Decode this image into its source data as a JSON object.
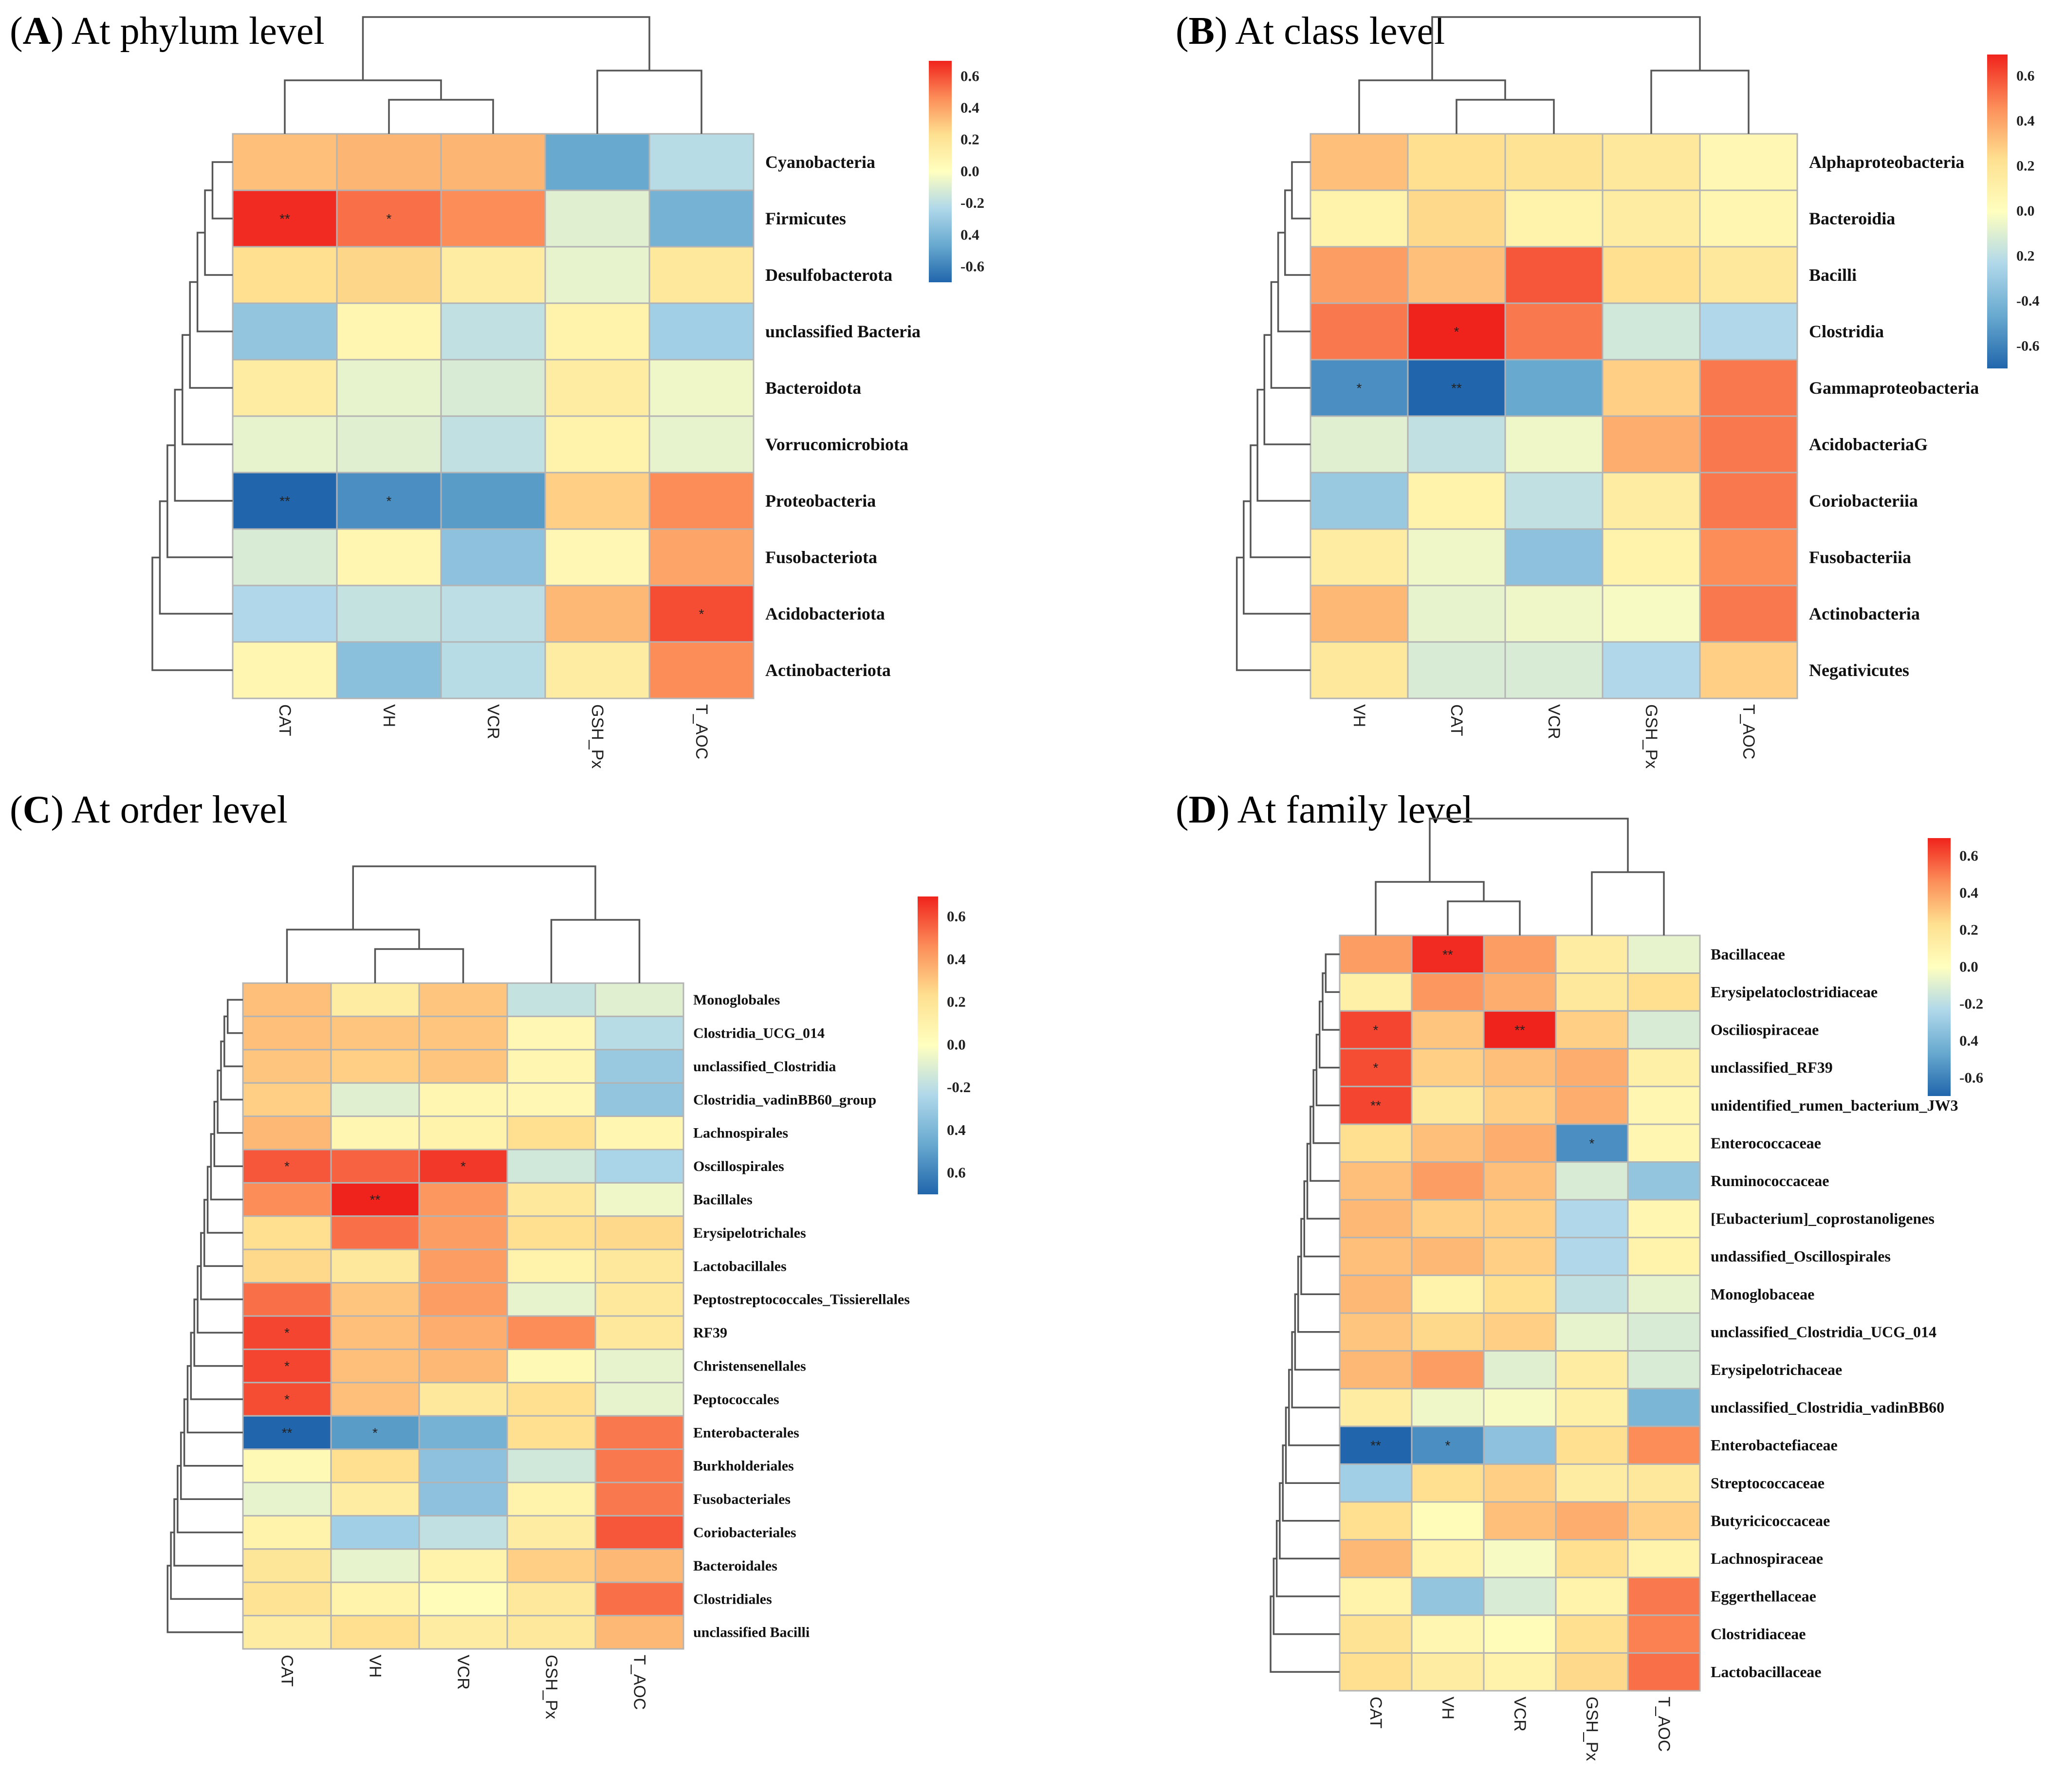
{
  "chart_data": [
    {
      "panel": "A",
      "title_rest": ") At phylum level",
      "type": "heatmap",
      "columns": [
        "CAT",
        "VH",
        "VCR",
        "GSH_Px",
        "T_AOC"
      ],
      "rows": [
        "Cyanobacteria",
        "Firmicutes",
        "Desulfobacterota",
        "unclassified Bacteria",
        "Bacteroidota",
        "Vorrucomicrobiota",
        "Proteobacteria",
        "Fusobacteriota",
        "Acidobacteriota",
        "Actinobacteriota"
      ],
      "values": [
        [
          0.3,
          0.33,
          0.33,
          -0.45,
          -0.18
        ],
        [
          0.68,
          0.52,
          0.45,
          -0.08,
          -0.4
        ],
        [
          0.2,
          0.23,
          0.12,
          -0.06,
          0.15
        ],
        [
          -0.3,
          0.06,
          -0.16,
          0.08,
          -0.25
        ],
        [
          0.12,
          -0.06,
          -0.1,
          0.12,
          -0.04
        ],
        [
          -0.06,
          -0.08,
          -0.16,
          0.08,
          -0.06
        ],
        [
          -0.7,
          -0.55,
          -0.5,
          0.25,
          0.45
        ],
        [
          -0.1,
          0.06,
          -0.32,
          0.05,
          0.38
        ],
        [
          -0.2,
          -0.15,
          -0.17,
          0.32,
          0.6
        ],
        [
          0.06,
          -0.33,
          -0.18,
          0.12,
          0.45
        ]
      ],
      "stars": [
        [
          "",
          "",
          "",
          "",
          ""
        ],
        [
          "**",
          "*",
          "",
          "",
          ""
        ],
        [
          "",
          "",
          "",
          "",
          ""
        ],
        [
          "",
          "",
          "",
          "",
          ""
        ],
        [
          "",
          "",
          "",
          "",
          ""
        ],
        [
          "",
          "",
          "",
          "",
          ""
        ],
        [
          "**",
          "*",
          "",
          "",
          ""
        ],
        [
          "",
          "",
          "",
          "",
          ""
        ],
        [
          "",
          "",
          "",
          "",
          "*"
        ],
        [
          "",
          "",
          "",
          "",
          ""
        ]
      ],
      "legend_ticks": [
        "0.6",
        "0.4",
        "0.2",
        "0.0",
        "-0.2",
        "0.4",
        "-0.6"
      ],
      "vmin": -0.7,
      "vmax": 0.7
    },
    {
      "panel": "B",
      "title_rest": ") At class level",
      "type": "heatmap",
      "columns": [
        "VH",
        "CAT",
        "VCR",
        "GSH_Px",
        "T_AOC"
      ],
      "rows": [
        "Alphaproteobacteria",
        "Bacteroidia",
        "Bacilli",
        "Clostridia",
        "Gammaproteobacteria",
        "AcidobacteriaG",
        "Coriobacteriia",
        "Fusobacteriia",
        "Actinobacteria",
        "Negativicutes"
      ],
      "values": [
        [
          0.3,
          0.2,
          0.18,
          0.15,
          0.05
        ],
        [
          0.08,
          0.22,
          0.08,
          0.12,
          0.06
        ],
        [
          0.4,
          0.3,
          0.58,
          0.2,
          0.15
        ],
        [
          0.5,
          0.7,
          0.5,
          -0.12,
          -0.2
        ],
        [
          -0.55,
          -0.7,
          -0.45,
          0.25,
          0.5
        ],
        [
          -0.08,
          -0.16,
          -0.04,
          0.35,
          0.5
        ],
        [
          -0.28,
          0.08,
          -0.16,
          0.12,
          0.5
        ],
        [
          0.12,
          -0.04,
          -0.32,
          0.08,
          0.45
        ],
        [
          0.32,
          -0.06,
          -0.04,
          -0.02,
          0.5
        ],
        [
          0.15,
          -0.1,
          -0.1,
          -0.2,
          0.25
        ]
      ],
      "stars": [
        [
          "",
          "",
          "",
          "",
          ""
        ],
        [
          "",
          "",
          "",
          "",
          ""
        ],
        [
          "",
          "",
          "",
          "",
          ""
        ],
        [
          "",
          "*",
          "",
          "",
          ""
        ],
        [
          "*",
          "**",
          "",
          "",
          ""
        ],
        [
          "",
          "",
          "",
          "",
          ""
        ],
        [
          "",
          "",
          "",
          "",
          ""
        ],
        [
          "",
          "",
          "",
          "",
          ""
        ],
        [
          "",
          "",
          "",
          "",
          ""
        ],
        [
          "",
          "",
          "",
          "",
          ""
        ]
      ],
      "legend_ticks": [
        "0.6",
        "0.4",
        "0.2",
        "0.0",
        "0.2",
        "-0.4",
        "-0.6"
      ],
      "vmin": -0.7,
      "vmax": 0.7
    },
    {
      "panel": "C",
      "title_rest": ") At order level",
      "type": "heatmap",
      "columns": [
        "CAT",
        "VH",
        "VCR",
        "GSH_Px",
        "T_AOC"
      ],
      "rows": [
        "Monoglobales",
        "Clostridia_UCG_014",
        "unclassified_Clostridia",
        "Clostridia_vadinBB60_group",
        "Lachnospirales",
        "Oscillospirales",
        "Bacillales",
        "Erysipelotrichales",
        "Lactobacillales",
        "Peptostreptococcales_Tissierellales",
        "RF39",
        "Christensenellales",
        "Peptococcales",
        "Enterobacterales",
        "Burkholderiales",
        "Fusobacteriales",
        "Coriobacteriales",
        "Bacteroidales",
        "Clostridiales",
        "unclassified Bacilli"
      ],
      "values": [
        [
          0.3,
          0.12,
          0.28,
          -0.15,
          -0.08
        ],
        [
          0.3,
          0.28,
          0.28,
          0.05,
          -0.18
        ],
        [
          0.28,
          0.25,
          0.28,
          0.06,
          -0.28
        ],
        [
          0.25,
          -0.08,
          0.06,
          0.05,
          -0.3
        ],
        [
          0.32,
          0.06,
          0.08,
          0.2,
          0.06
        ],
        [
          0.58,
          0.55,
          0.65,
          -0.12,
          -0.22
        ],
        [
          0.45,
          0.7,
          0.42,
          0.15,
          -0.04
        ],
        [
          0.2,
          0.52,
          0.4,
          0.2,
          0.22
        ],
        [
          0.22,
          0.15,
          0.4,
          0.08,
          0.15
        ],
        [
          0.52,
          0.28,
          0.4,
          -0.06,
          0.15
        ],
        [
          0.62,
          0.3,
          0.35,
          0.45,
          0.15
        ],
        [
          0.62,
          0.3,
          0.32,
          0.04,
          -0.06
        ],
        [
          0.6,
          0.3,
          0.15,
          0.2,
          -0.06
        ],
        [
          -0.7,
          -0.5,
          -0.4,
          0.2,
          0.5
        ],
        [
          0.04,
          0.2,
          -0.32,
          -0.12,
          0.5
        ],
        [
          -0.06,
          0.12,
          -0.32,
          0.08,
          0.5
        ],
        [
          0.08,
          -0.25,
          -0.16,
          0.12,
          0.58
        ],
        [
          0.16,
          -0.06,
          0.08,
          0.25,
          0.32
        ],
        [
          0.18,
          0.08,
          0.02,
          0.15,
          0.52
        ],
        [
          0.12,
          0.2,
          0.12,
          0.15,
          0.32
        ]
      ],
      "stars": [
        [
          "",
          "",
          "",
          "",
          ""
        ],
        [
          "",
          "",
          "",
          "",
          ""
        ],
        [
          "",
          "",
          "",
          "",
          ""
        ],
        [
          "",
          "",
          "",
          "",
          ""
        ],
        [
          "",
          "",
          "",
          "",
          ""
        ],
        [
          "*",
          "",
          "*",
          "",
          ""
        ],
        [
          "",
          "**",
          "",
          "",
          ""
        ],
        [
          "",
          "",
          "",
          "",
          ""
        ],
        [
          "",
          "",
          "",
          "",
          ""
        ],
        [
          "",
          "",
          "",
          "",
          ""
        ],
        [
          "*",
          "",
          "",
          "",
          ""
        ],
        [
          "*",
          "",
          "",
          "",
          ""
        ],
        [
          "*",
          "",
          "",
          "",
          ""
        ],
        [
          "**",
          "*",
          "",
          "",
          ""
        ],
        [
          "",
          "",
          "",
          "",
          ""
        ],
        [
          "",
          "",
          "",
          "",
          ""
        ],
        [
          "",
          "",
          "",
          "",
          ""
        ],
        [
          "",
          "",
          "",
          "",
          ""
        ],
        [
          "",
          "",
          "",
          "",
          ""
        ],
        [
          "",
          "",
          "",
          "",
          ""
        ]
      ],
      "legend_ticks": [
        "0.6",
        "0.4",
        "0.2",
        "0.0",
        "-0.2",
        "0.4",
        "0.6"
      ],
      "vmin": -0.7,
      "vmax": 0.7
    },
    {
      "panel": "D",
      "title_rest": ") At family level",
      "type": "heatmap",
      "columns": [
        "CAT",
        "VH",
        "VCR",
        "GSH_Px",
        "T_AOC"
      ],
      "rows": [
        "Bacillaceae",
        "Erysipelatoclostridiaceae",
        "Osciliospiraceae",
        "unclassified_RF39",
        "unidentified_rumen_bacterium_JW3",
        "Enterococcaceae",
        "Ruminococcaceae",
        "[Eubacterium]_coprostanoligenes",
        "undassified_Oscillospirales",
        "Monoglobaceae",
        "unclassified_Clostridia_UCG_014",
        "Erysipelotrichaceae",
        "unclassified_Clostridia_vadinBB60",
        "Enterobactefiaceae",
        "Streptococcaceae",
        "Butyricicoccaceae",
        "Lachnospiraceae",
        "Eggerthellaceae",
        "Clostridiaceae",
        "Lactobacillaceae"
      ],
      "values": [
        [
          0.4,
          0.68,
          0.4,
          0.12,
          -0.06
        ],
        [
          0.1,
          0.42,
          0.35,
          0.15,
          0.2
        ],
        [
          0.62,
          0.28,
          0.7,
          0.25,
          -0.1
        ],
        [
          0.6,
          0.25,
          0.3,
          0.35,
          0.1
        ],
        [
          0.62,
          0.15,
          0.25,
          0.35,
          0.06
        ],
        [
          0.2,
          0.3,
          0.35,
          -0.55,
          0.06
        ],
        [
          0.3,
          0.4,
          0.3,
          -0.1,
          -0.3
        ],
        [
          0.32,
          0.25,
          0.25,
          -0.2,
          0.06
        ],
        [
          0.3,
          0.32,
          0.25,
          -0.2,
          0.08
        ],
        [
          0.32,
          0.08,
          0.2,
          -0.16,
          -0.06
        ],
        [
          0.28,
          0.22,
          0.25,
          -0.06,
          -0.1
        ],
        [
          0.32,
          0.4,
          -0.08,
          0.12,
          -0.1
        ],
        [
          0.12,
          -0.04,
          -0.02,
          0.1,
          -0.38
        ],
        [
          -0.7,
          -0.55,
          -0.32,
          0.2,
          0.45
        ],
        [
          -0.25,
          0.2,
          0.25,
          0.12,
          0.15
        ],
        [
          0.2,
          0.02,
          0.3,
          0.35,
          0.25
        ],
        [
          0.32,
          0.08,
          -0.02,
          0.2,
          0.08
        ],
        [
          0.08,
          -0.3,
          -0.1,
          0.08,
          0.5
        ],
        [
          0.18,
          0.06,
          0.02,
          0.2,
          0.48
        ],
        [
          0.2,
          0.12,
          0.08,
          0.22,
          0.52
        ]
      ],
      "stars": [
        [
          "",
          "**",
          "",
          "",
          ""
        ],
        [
          "",
          "",
          "",
          "",
          ""
        ],
        [
          "*",
          "",
          "**",
          "",
          ""
        ],
        [
          "*",
          "",
          "",
          "",
          ""
        ],
        [
          "**",
          "",
          "",
          "",
          ""
        ],
        [
          "",
          "",
          "",
          "*",
          ""
        ],
        [
          "",
          "",
          "",
          "",
          ""
        ],
        [
          "",
          "",
          "",
          "",
          ""
        ],
        [
          "",
          "",
          "",
          "",
          ""
        ],
        [
          "",
          "",
          "",
          "",
          ""
        ],
        [
          "",
          "",
          "",
          "",
          ""
        ],
        [
          "",
          "",
          "",
          "",
          ""
        ],
        [
          "",
          "",
          "",
          "",
          ""
        ],
        [
          "**",
          "*",
          "",
          "",
          ""
        ],
        [
          "",
          "",
          "",
          "",
          ""
        ],
        [
          "",
          "",
          "",
          "",
          ""
        ],
        [
          "",
          "",
          "",
          "",
          ""
        ],
        [
          "",
          "",
          "",
          "",
          ""
        ],
        [
          "",
          "",
          "",
          "",
          ""
        ],
        [
          "",
          "",
          "",
          "",
          ""
        ]
      ],
      "legend_ticks": [
        "0.6",
        "0.4",
        "0.2",
        "0.0",
        "-0.2",
        "0.4",
        "-0.6"
      ],
      "vmin": -0.7,
      "vmax": 0.7
    }
  ]
}
